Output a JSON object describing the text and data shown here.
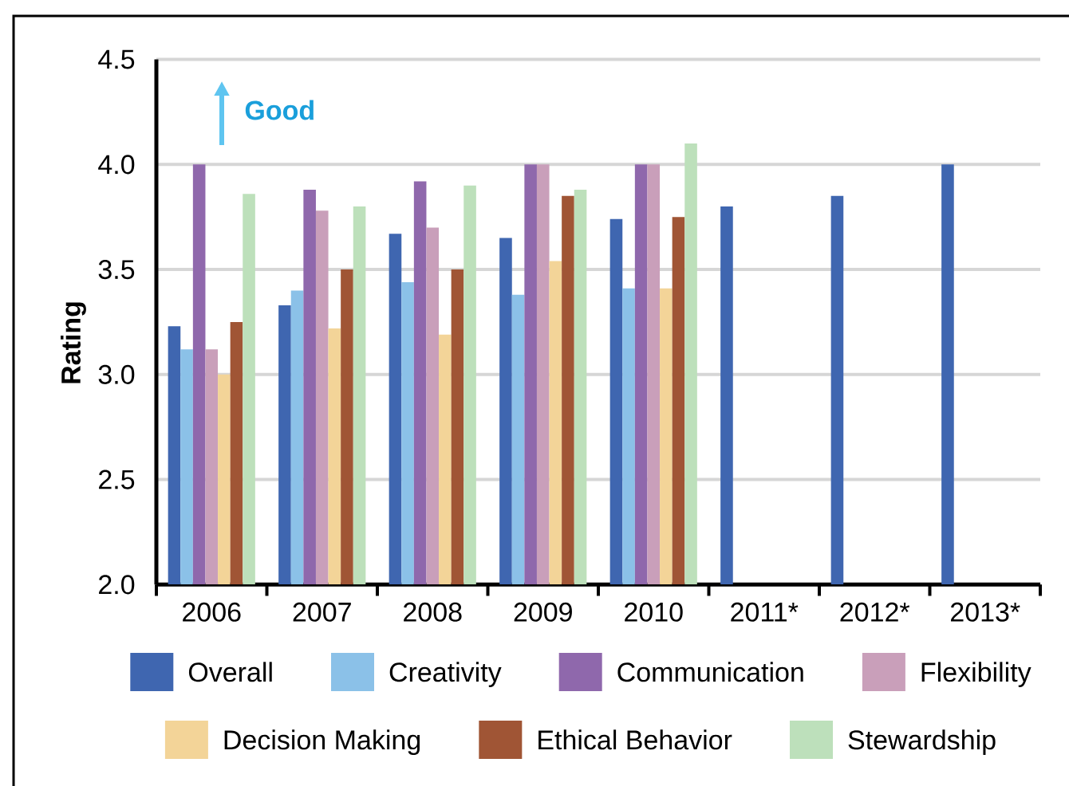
{
  "chart_data": {
    "type": "bar",
    "ylabel": "Rating",
    "annotations": [
      "Good"
    ],
    "categories": [
      "2006",
      "2007",
      "2008",
      "2009",
      "2010",
      "2011*",
      "2012*",
      "2013*"
    ],
    "series": [
      {
        "name": "Overall",
        "color": "#3f66b0",
        "values": [
          3.23,
          3.33,
          3.67,
          3.65,
          3.74,
          3.8,
          3.85,
          4.0
        ]
      },
      {
        "name": "Creativity",
        "color": "#8bc1e8",
        "values": [
          3.12,
          3.4,
          3.44,
          3.38,
          3.41,
          null,
          null,
          null
        ]
      },
      {
        "name": "Communication",
        "color": "#8f68ac",
        "values": [
          4.0,
          3.88,
          3.92,
          4.0,
          4.0,
          null,
          null,
          null
        ]
      },
      {
        "name": "Flexibility",
        "color": "#c99fba",
        "values": [
          3.12,
          3.78,
          3.7,
          4.0,
          4.0,
          null,
          null,
          null
        ]
      },
      {
        "name": "Decision Making",
        "color": "#f3d498",
        "values": [
          3.0,
          3.22,
          3.19,
          3.54,
          3.41,
          null,
          null,
          null
        ]
      },
      {
        "name": "Ethical Behavior",
        "color": "#a05535",
        "values": [
          3.25,
          3.5,
          3.5,
          3.85,
          3.75,
          null,
          null,
          null
        ]
      },
      {
        "name": "Stewardship",
        "color": "#bde0bb",
        "values": [
          3.86,
          3.8,
          3.9,
          3.88,
          4.1,
          null,
          null,
          null
        ]
      }
    ],
    "ylim": [
      2.0,
      4.5
    ],
    "yticks": [
      {
        "value": 2.0,
        "label": "2.0"
      },
      {
        "value": 2.5,
        "label": "2.5"
      },
      {
        "value": 3.0,
        "label": "3.0"
      },
      {
        "value": 3.5,
        "label": "3.5"
      },
      {
        "value": 4.0,
        "label": "4.0"
      },
      {
        "value": 4.5,
        "label": "4.5"
      }
    ],
    "grid": "y",
    "legend": "bottom"
  }
}
